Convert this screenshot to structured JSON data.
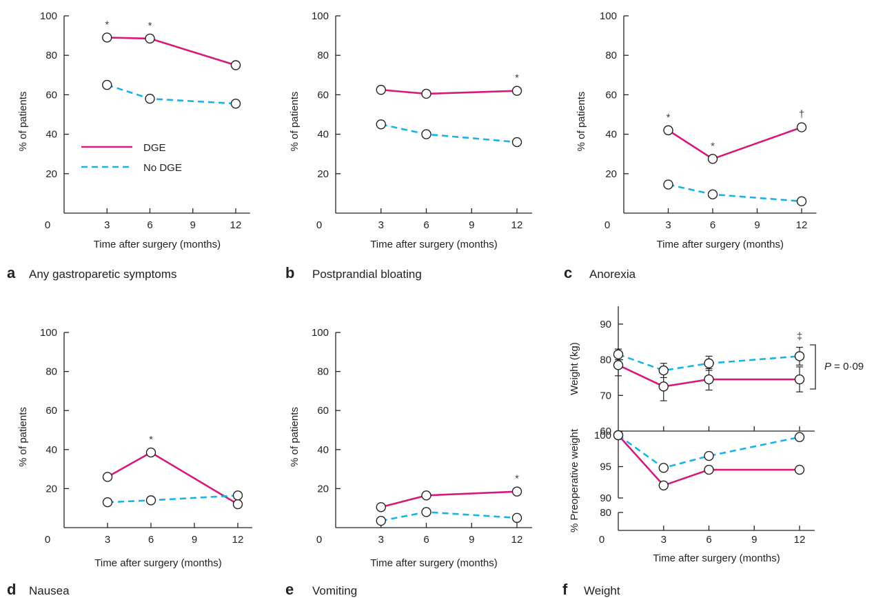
{
  "colors": {
    "dge": "#d6197b",
    "no_dge": "#19b2e6",
    "axis": "#222222"
  },
  "legend": {
    "dge": "DGE",
    "no_dge": "No DGE"
  },
  "chart_data": [
    {
      "type": "line",
      "letter": "a",
      "title": "Any gastroparetic symptoms",
      "xlabel": "Time after surgery (months)",
      "ylabel": "% of patients",
      "xticks": [
        0,
        3,
        6,
        9,
        12
      ],
      "yticks": [
        20,
        40,
        60,
        80,
        100
      ],
      "xlim": [
        0,
        13
      ],
      "ylim": [
        0,
        100
      ],
      "series": [
        {
          "name": "DGE",
          "x": [
            3,
            6,
            12
          ],
          "y": [
            89,
            88.5,
            75
          ]
        },
        {
          "name": "No DGE",
          "x": [
            3,
            6,
            12
          ],
          "y": [
            65,
            58,
            55.5
          ]
        }
      ],
      "annotations": [
        {
          "text": "*",
          "x": 3,
          "y": 89
        },
        {
          "text": "*",
          "x": 6,
          "y": 88.5
        }
      ]
    },
    {
      "type": "line",
      "letter": "b",
      "title": "Postprandial bloating",
      "xlabel": "Time after surgery (months)",
      "ylabel": "% of patients",
      "xticks": [
        0,
        3,
        6,
        9,
        12
      ],
      "yticks": [
        20,
        40,
        60,
        80,
        100
      ],
      "xlim": [
        0,
        13
      ],
      "ylim": [
        0,
        100
      ],
      "series": [
        {
          "name": "DGE",
          "x": [
            3,
            6,
            12
          ],
          "y": [
            62.5,
            60.5,
            62
          ]
        },
        {
          "name": "No DGE",
          "x": [
            3,
            6,
            12
          ],
          "y": [
            45,
            40,
            36
          ]
        }
      ],
      "annotations": [
        {
          "text": "*",
          "x": 12,
          "y": 62
        }
      ]
    },
    {
      "type": "line",
      "letter": "c",
      "title": "Anorexia",
      "xlabel": "Time after surgery (months)",
      "ylabel": "% of patients",
      "xticks": [
        0,
        3,
        6,
        9,
        12
      ],
      "yticks": [
        20,
        40,
        60,
        80,
        100
      ],
      "xlim": [
        0,
        13
      ],
      "ylim": [
        0,
        100
      ],
      "series": [
        {
          "name": "DGE",
          "x": [
            3,
            6,
            12
          ],
          "y": [
            42,
            27.5,
            43.5
          ]
        },
        {
          "name": "No DGE",
          "x": [
            3,
            6,
            12
          ],
          "y": [
            14.5,
            9.5,
            6
          ]
        }
      ],
      "annotations": [
        {
          "text": "*",
          "x": 3,
          "y": 42
        },
        {
          "text": "*",
          "x": 6,
          "y": 27.5
        },
        {
          "text": "†",
          "x": 12,
          "y": 43.5
        }
      ]
    },
    {
      "type": "line",
      "letter": "d",
      "title": "Nausea",
      "xlabel": "Time after surgery (months)",
      "ylabel": "% of patients",
      "xticks": [
        0,
        3,
        6,
        9,
        12
      ],
      "yticks": [
        20,
        40,
        60,
        80,
        100
      ],
      "xlim": [
        0,
        13
      ],
      "ylim": [
        0,
        100
      ],
      "series": [
        {
          "name": "DGE",
          "x": [
            3,
            6,
            12
          ],
          "y": [
            26,
            38.5,
            12
          ]
        },
        {
          "name": "No DGE",
          "x": [
            3,
            6,
            12
          ],
          "y": [
            13,
            14,
            16.5
          ]
        }
      ],
      "annotations": [
        {
          "text": "*",
          "x": 6,
          "y": 38.5
        }
      ]
    },
    {
      "type": "line",
      "letter": "e",
      "title": "Vomiting",
      "xlabel": "Time after surgery (months)",
      "ylabel": "% of patients",
      "xticks": [
        0,
        3,
        6,
        9,
        12
      ],
      "yticks": [
        20,
        40,
        60,
        80,
        100
      ],
      "xlim": [
        0,
        13
      ],
      "ylim": [
        0,
        100
      ],
      "series": [
        {
          "name": "DGE",
          "x": [
            3,
            6,
            12
          ],
          "y": [
            10.5,
            16.5,
            18.5
          ]
        },
        {
          "name": "No DGE",
          "x": [
            3,
            6,
            12
          ],
          "y": [
            3.5,
            8,
            5
          ]
        }
      ],
      "annotations": [
        {
          "text": "*",
          "x": 12,
          "y": 18.5
        }
      ]
    },
    {
      "type": "line",
      "letter": "f",
      "title": "Weight",
      "xlabel": "Time after surgery (months)",
      "xticks": [
        0,
        3,
        6,
        9,
        12
      ],
      "xlim": [
        0,
        13
      ],
      "upper": {
        "ylabel": "Weight (kg)",
        "yticks": [
          60,
          70,
          80,
          90
        ],
        "ylim": [
          60,
          95
        ],
        "series": [
          {
            "name": "DGE",
            "x": [
              0,
              3,
              6,
              12
            ],
            "y": [
              78.5,
              72.5,
              74.5,
              74.5
            ],
            "err": [
              3,
              4,
              3,
              3.5
            ]
          },
          {
            "name": "No DGE",
            "x": [
              0,
              3,
              6,
              12
            ],
            "y": [
              81.5,
              77,
              79,
              81
            ],
            "err": [
              1.5,
              2,
              2,
              2.5
            ]
          }
        ],
        "annotations": [
          {
            "text": "‡",
            "x": 12,
            "y": 84.5
          }
        ],
        "bracket_label_italic": "P",
        "bracket_label_rest": " = 0·09"
      },
      "lower": {
        "ylabel": "% Preoperative weight",
        "yticks": [
          80,
          90,
          95,
          100
        ],
        "ylim": [
          80,
          102
        ],
        "series": [
          {
            "name": "DGE",
            "x": [
              0,
              3,
              6,
              12
            ],
            "y": [
              100,
              92,
              94.5,
              94.5
            ]
          },
          {
            "name": "No DGE",
            "x": [
              0,
              3,
              6,
              12
            ],
            "y": [
              100,
              94.8,
              96.7,
              99.7
            ]
          }
        ]
      }
    }
  ]
}
